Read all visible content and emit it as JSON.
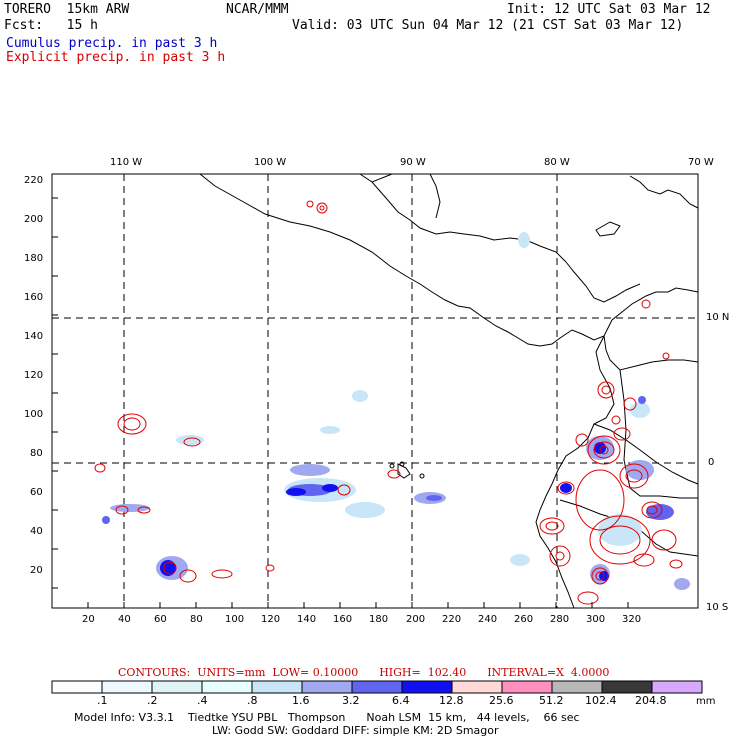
{
  "header": {
    "model": "TORERO  15km ARW",
    "center": "NCAR/MMM",
    "init": "Init: 12 UTC Sat 03 Mar 12",
    "fcst": "Fcst:   15 h",
    "valid": "Valid: 03 UTC Sun 04 Mar 12 (21 CST Sat 03 Mar 12)",
    "cumulus": "Cumulus precip. in past 3 h",
    "explicit": "Explicit precip. in past 3 h"
  },
  "axes": {
    "x_ticks": [
      "20",
      "40",
      "60",
      "80",
      "100",
      "120",
      "140",
      "160",
      "180",
      "200",
      "220",
      "240",
      "260",
      "280",
      "300",
      "320"
    ],
    "y_ticks": [
      "20",
      "40",
      "60",
      "80",
      "100",
      "120",
      "140",
      "160",
      "180",
      "200",
      "220"
    ],
    "lon_labels": [
      "110 W",
      "100 W",
      "90 W",
      "80 W",
      "70 W"
    ],
    "lat_labels": [
      "10 N",
      "0",
      "10 S"
    ]
  },
  "contours": {
    "label": "CONTOURS:  UNITS=mm  LOW= 0.10000      HIGH=  102.40      INTERVAL=X  4.0000"
  },
  "colorbar": {
    "ticks": [
      ".1",
      ".2",
      ".4",
      ".8",
      "1.6",
      "3.2",
      "6.4",
      "12.8",
      "25.6",
      "51.2",
      "102.4",
      "204.8"
    ],
    "units": "mm",
    "colors": [
      "#ffffff",
      "#f0f8ff",
      "#dff4f4",
      "#e8ffff",
      "#c8e6f8",
      "#a0a8f0",
      "#6064f0",
      "#1010f0",
      "#ffd8d8",
      "#ff90c0",
      "#b8b8b8",
      "#383838",
      "#d8a8ff"
    ]
  },
  "footer": {
    "line1": "Model Info: V3.3.1    Tiedtke YSU PBL   Thompson      Noah LSM  15 km,   44 levels,    66 sec",
    "line2": "LW: Godd SW: Goddard DIFF: simple KM: 2D Smagor"
  }
}
